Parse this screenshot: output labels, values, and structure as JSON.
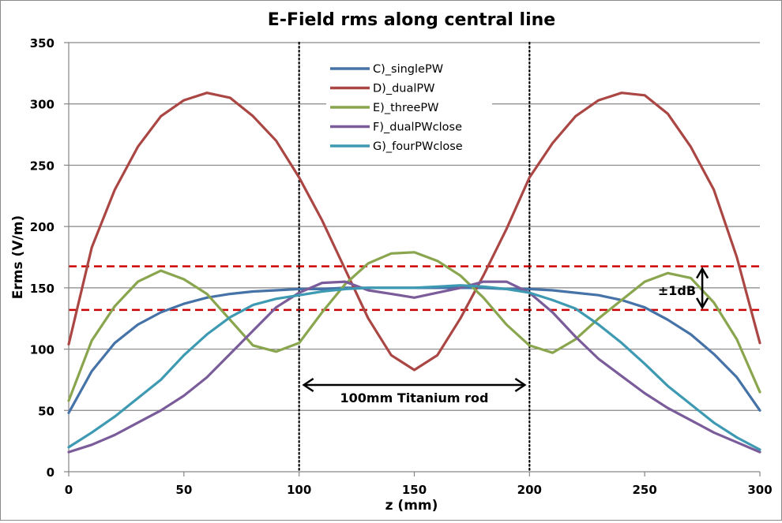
{
  "chart_data": {
    "type": "line",
    "title": "E-Field rms along central line",
    "xlabel": "z (mm)",
    "ylabel": "Erms (V/m)",
    "xlim": [
      0,
      300
    ],
    "ylim": [
      0,
      350
    ],
    "xticks": [
      0,
      50,
      100,
      150,
      200,
      250,
      300
    ],
    "yticks": [
      0,
      50,
      100,
      150,
      200,
      250,
      300,
      350
    ],
    "grid": "horizontal",
    "legend_position": "top-center",
    "x": [
      0,
      10,
      20,
      30,
      40,
      50,
      60,
      70,
      80,
      90,
      100,
      110,
      120,
      130,
      140,
      150,
      160,
      170,
      180,
      190,
      200,
      210,
      220,
      230,
      240,
      250,
      260,
      270,
      280,
      290,
      300
    ],
    "series": [
      {
        "name": "C)_singlePW",
        "color": "#4572A7",
        "values": [
          48,
          82,
          105,
          120,
          130,
          137,
          142,
          145,
          147,
          148,
          149,
          149,
          150,
          150,
          150,
          150,
          150,
          150,
          150,
          149,
          149,
          148,
          146,
          144,
          140,
          134,
          124,
          112,
          96,
          77,
          50
        ]
      },
      {
        "name": "D)_dualPW",
        "color": "#AA4643",
        "values": [
          104,
          183,
          230,
          265,
          290,
          303,
          309,
          305,
          290,
          270,
          240,
          205,
          165,
          125,
          95,
          83,
          95,
          125,
          160,
          198,
          240,
          268,
          290,
          303,
          309,
          307,
          292,
          265,
          230,
          175,
          105
        ]
      },
      {
        "name": "E)_threePW",
        "color": "#89A54E",
        "values": [
          58,
          107,
          135,
          155,
          164,
          157,
          145,
          124,
          103,
          98,
          105,
          130,
          153,
          170,
          178,
          179,
          172,
          160,
          142,
          120,
          103,
          97,
          108,
          125,
          140,
          155,
          162,
          158,
          138,
          108,
          65
        ]
      },
      {
        "name": "F)_dualPWclose",
        "color": "#7B5C9A",
        "values": [
          16,
          22,
          30,
          40,
          50,
          62,
          77,
          96,
          115,
          134,
          146,
          154,
          155,
          148,
          145,
          142,
          146,
          150,
          155,
          155,
          146,
          130,
          110,
          92,
          78,
          64,
          52,
          42,
          32,
          24,
          16
        ]
      },
      {
        "name": "G)_fourPWclose",
        "color": "#3D9AB2",
        "values": [
          20,
          32,
          45,
          60,
          75,
          95,
          112,
          126,
          136,
          141,
          144,
          147,
          149,
          150,
          150,
          150,
          151,
          152,
          151,
          149,
          146,
          140,
          133,
          120,
          105,
          88,
          70,
          55,
          40,
          28,
          18
        ]
      }
    ],
    "reference_lines": [
      {
        "name": "upper-1dB",
        "y": 167.5,
        "color": "#CC0000",
        "style": "dashed"
      },
      {
        "name": "lower-1dB",
        "y": 132,
        "color": "#CC0000",
        "style": "dashed"
      }
    ],
    "vertical_markers": [
      {
        "x": 100,
        "style": "dotted",
        "color": "#000000"
      },
      {
        "x": 200,
        "style": "dotted",
        "color": "#000000"
      }
    ],
    "annotations": [
      {
        "text": "100mm Titanium rod",
        "type": "double-arrow-horizontal",
        "x_from": 100,
        "x_to": 200,
        "y": 70
      },
      {
        "text": "±1dB",
        "type": "double-arrow-vertical",
        "x": 275,
        "y_from": 132,
        "y_to": 167.5
      }
    ]
  }
}
